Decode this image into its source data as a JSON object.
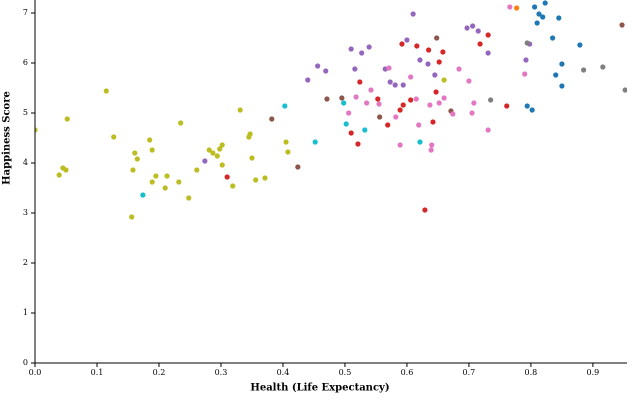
{
  "chart_data": {
    "type": "scatter",
    "x_label": "Health (Life Expectancy)",
    "y_label": "Happiness Score",
    "xlim": [
      0,
      0.955
    ],
    "ylim": [
      0,
      7.26
    ],
    "xticks": [
      {
        "value": 0,
        "label": "0.0"
      },
      0.1,
      0.2,
      0.3,
      0.4,
      0.5,
      0.6,
      0.7,
      0.8,
      0.9
    ],
    "yticks": [
      0,
      1,
      2,
      3,
      4,
      5,
      6,
      7
    ],
    "series": [
      {
        "color": "#bcbd22",
        "x": [
          0.0,
          0.039,
          0.045,
          0.05,
          0.052,
          0.115,
          0.127,
          0.156,
          0.158,
          0.161,
          0.165,
          0.185,
          0.189,
          0.189,
          0.195,
          0.21,
          0.213,
          0.232,
          0.235,
          0.248,
          0.261,
          0.281,
          0.287,
          0.294,
          0.298,
          0.302,
          0.302,
          0.319,
          0.331,
          0.345,
          0.347,
          0.35,
          0.356,
          0.371,
          0.405,
          0.408,
          0.66
        ],
        "values": [
          4.66,
          3.76,
          3.9,
          3.86,
          4.88,
          5.44,
          4.52,
          2.92,
          3.86,
          4.2,
          4.08,
          4.46,
          4.26,
          3.62,
          3.74,
          3.5,
          3.74,
          3.62,
          4.8,
          3.3,
          3.86,
          4.26,
          4.2,
          4.14,
          4.28,
          4.36,
          3.96,
          3.54,
          5.06,
          4.52,
          4.58,
          4.1,
          3.66,
          3.7,
          4.42,
          4.22,
          5.66
        ]
      },
      {
        "color": "#17becf",
        "x": [
          0.174,
          0.403,
          0.452,
          0.498,
          0.502,
          0.532,
          0.621
        ],
        "values": [
          3.36,
          5.14,
          4.42,
          5.2,
          4.78,
          4.66,
          4.42
        ]
      },
      {
        "color": "#d62728",
        "x": [
          0.31,
          0.51,
          0.521,
          0.524,
          0.553,
          0.569,
          0.589,
          0.592,
          0.594,
          0.606,
          0.616,
          0.629,
          0.635,
          0.642,
          0.647,
          0.652,
          0.658,
          0.718,
          0.731,
          0.761
        ],
        "values": [
          3.72,
          4.6,
          4.38,
          5.62,
          5.28,
          4.76,
          5.06,
          6.38,
          5.16,
          5.26,
          6.34,
          3.06,
          6.26,
          4.82,
          5.42,
          6.02,
          6.22,
          6.38,
          6.56,
          5.14
        ]
      },
      {
        "color": "#8c564b",
        "x": [
          0.382,
          0.424,
          0.471,
          0.495,
          0.556,
          0.648,
          0.671,
          0.947
        ],
        "values": [
          4.88,
          3.92,
          5.28,
          5.3,
          4.92,
          6.5,
          5.04,
          6.76
        ]
      },
      {
        "color": "#9467bd",
        "x": [
          0.274,
          0.44,
          0.456,
          0.469,
          0.51,
          0.516,
          0.527,
          0.539,
          0.565,
          0.573,
          0.581,
          0.594,
          0.6,
          0.61,
          0.621,
          0.634,
          0.645,
          0.697,
          0.706,
          0.715,
          0.731,
          0.792,
          0.798
        ],
        "values": [
          4.04,
          5.66,
          5.94,
          5.84,
          6.28,
          5.88,
          6.2,
          6.32,
          5.88,
          5.62,
          5.56,
          5.56,
          6.46,
          6.98,
          6.06,
          5.98,
          5.76,
          6.7,
          6.74,
          6.64,
          6.2,
          6.06,
          6.38
        ]
      },
      {
        "color": "#e377c2",
        "x": [
          0.506,
          0.518,
          0.535,
          0.542,
          0.555,
          0.571,
          0.582,
          0.589,
          0.606,
          0.615,
          0.619,
          0.637,
          0.639,
          0.64,
          0.652,
          0.66,
          0.674,
          0.684,
          0.7,
          0.705,
          0.708,
          0.731,
          0.766,
          0.79
        ],
        "values": [
          5.0,
          5.32,
          5.2,
          5.46,
          5.18,
          5.9,
          4.92,
          4.36,
          5.72,
          5.28,
          4.76,
          5.16,
          4.26,
          4.36,
          5.2,
          5.3,
          4.98,
          5.88,
          5.64,
          5.0,
          5.2,
          4.66,
          7.12,
          5.78
        ]
      },
      {
        "color": "#7f7f7f",
        "x": [
          0.735,
          0.794,
          0.885,
          0.916,
          0.952
        ],
        "values": [
          5.26,
          6.4,
          5.86,
          5.92,
          5.46
        ]
      },
      {
        "color": "#1f77b4",
        "x": [
          0.794,
          0.802,
          0.806,
          0.81,
          0.813,
          0.819,
          0.823,
          0.835,
          0.84,
          0.845,
          0.85,
          0.85,
          0.879
        ],
        "values": [
          5.14,
          5.06,
          7.12,
          6.8,
          6.98,
          6.92,
          7.2,
          6.5,
          5.76,
          6.9,
          5.54,
          5.98,
          6.36
        ]
      },
      {
        "color": "#ff7f0e",
        "x": [
          0.777
        ],
        "values": [
          7.1
        ]
      }
    ]
  }
}
